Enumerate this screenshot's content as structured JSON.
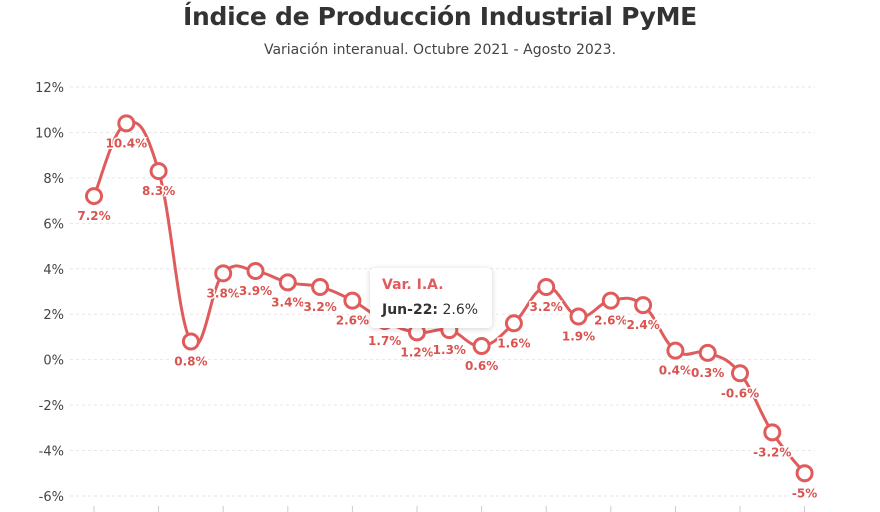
{
  "title": "Índice de Producción Industrial PyME",
  "subtitle": "Variación interanual. Octubre 2021 - Agosto 2023.",
  "tooltip": {
    "series_name": "Var. I.A.",
    "category": "Jun-22:",
    "value": "2.6%"
  },
  "colors": {
    "series": "#e05c5c",
    "label": "#d9534f",
    "grid": "#e6e6e6",
    "axis_text": "#444444"
  },
  "chart_data": {
    "type": "line",
    "title": "Índice de Producción Industrial PyME",
    "subtitle": "Variación interanual. Octubre 2021 - Agosto 2023.",
    "xlabel": "",
    "ylabel": "",
    "ylim": [
      -6,
      12
    ],
    "yticks": [
      "-6%",
      "-4%",
      "-2%",
      "0%",
      "2%",
      "4%",
      "6%",
      "8%",
      "10%",
      "12%"
    ],
    "ytick_values": [
      -6,
      -4,
      -2,
      0,
      2,
      4,
      6,
      8,
      10,
      12
    ],
    "grid": true,
    "series": [
      {
        "values": [
          7.2,
          10.4,
          8.3,
          0.8,
          3.8,
          3.9,
          3.4,
          3.2,
          2.6,
          1.7,
          1.2,
          1.3,
          0.6,
          1.6,
          3.2,
          1.9,
          2.6,
          2.4,
          0.4,
          0.3,
          -0.6,
          -3.2,
          -5
        ],
        "labels": [
          "7.2%",
          "10.4%",
          "8.3%",
          "0.8%",
          "3.8%",
          "3.9%",
          "3.4%",
          "3.2%",
          "2.6%",
          "1.7%",
          "1.2%",
          "1.3%",
          "0.6%",
          "1.6%",
          "3.2%",
          "1.9%",
          "2.6%",
          "2.4%",
          "0.4%",
          "0.3%",
          "-0.6%",
          "-3.2%",
          "-5%"
        ]
      }
    ]
  }
}
